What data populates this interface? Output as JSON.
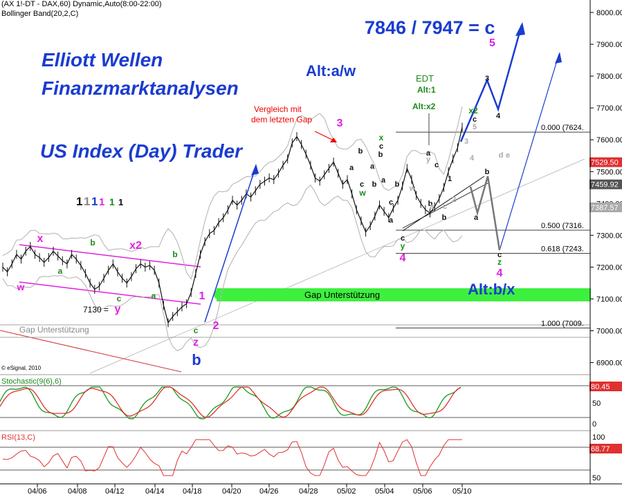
{
  "header": {
    "line1": "(AX 1!-DT - DAX,60) Dynamic,Auto(8:00-22:00)",
    "line2": "Bollinger Band(20,2,C)"
  },
  "titles": {
    "brand1": "Elliott Wellen",
    "brand2": "Finanzmarktanalysen",
    "product": "US Index (Day) Trader",
    "target": "7846 / 7947 = c",
    "target_wave": "5",
    "alt_aw": "Alt:a/w",
    "alt_bx": "Alt:b/x",
    "digits": [
      "1",
      "1",
      "1",
      "1",
      "1",
      "1"
    ]
  },
  "annotations": {
    "vergleich1": "Vergleich mit",
    "vergleich2": "dem letzten Gap",
    "edt1": "EDT",
    "edt2": "Alt:1",
    "edt3": "Alt:x2",
    "gap_green": "Gap Unterstützung",
    "gap_grey": "Gap Unterstützung",
    "level_7130": "7130 =",
    "copyright": "© eSignal, 2010"
  },
  "fib_labels": [
    {
      "ratio": "0.000",
      "value": "(7624.",
      "price": 7624
    },
    {
      "ratio": "0.500",
      "value": "(7316.",
      "price": 7316
    },
    {
      "ratio": "0.618",
      "value": "(7243.",
      "price": 7243
    },
    {
      "ratio": "1.000",
      "value": "(7009.",
      "price": 7009
    }
  ],
  "wave_labels": [
    {
      "t": "w",
      "c": "#e020e0",
      "x": 30,
      "y": 420,
      "s": 14
    },
    {
      "t": "x",
      "c": "#e020e0",
      "x": 58,
      "y": 350,
      "s": 16
    },
    {
      "t": "a",
      "c": "#1a8a1a",
      "x": 87,
      "y": 396,
      "s": 12
    },
    {
      "t": "b",
      "c": "#1a8a1a",
      "x": 134,
      "y": 355,
      "s": 12
    },
    {
      "t": "c",
      "c": "#1a8a1a",
      "x": 172,
      "y": 436,
      "s": 12
    },
    {
      "t": "x2",
      "c": "#e020e0",
      "x": 196,
      "y": 360,
      "s": 16
    },
    {
      "t": "a",
      "c": "#1a8a1a",
      "x": 222,
      "y": 432,
      "s": 12
    },
    {
      "t": "b",
      "c": "#1a8a1a",
      "x": 253,
      "y": 372,
      "s": 12
    },
    {
      "t": "y",
      "c": "#e020e0",
      "x": 170,
      "y": 452,
      "s": 16
    },
    {
      "t": "1",
      "c": "#e020e0",
      "x": 292,
      "y": 433,
      "s": 16
    },
    {
      "t": "2",
      "c": "#e020e0",
      "x": 312,
      "y": 476,
      "s": 16
    },
    {
      "t": "c",
      "c": "#1a8a1a",
      "x": 283,
      "y": 482,
      "s": 12
    },
    {
      "t": "z",
      "c": "#e020e0",
      "x": 283,
      "y": 500,
      "s": 16
    },
    {
      "t": "b",
      "c": "#1a3cd0",
      "x": 284,
      "y": 528,
      "s": 22
    },
    {
      "t": "3",
      "c": "#e020e0",
      "x": 491,
      "y": 183,
      "s": 16
    },
    {
      "t": "a",
      "c": "#111",
      "x": 508,
      "y": 246,
      "s": 11
    },
    {
      "t": "b",
      "c": "#111",
      "x": 521,
      "y": 222,
      "s": 11
    },
    {
      "t": "c",
      "c": "#111",
      "x": 523,
      "y": 270,
      "s": 11
    },
    {
      "t": "w",
      "c": "#1a8a1a",
      "x": 524,
      "y": 283,
      "s": 12
    },
    {
      "t": "x",
      "c": "#1a8a1a",
      "x": 551,
      "y": 203,
      "s": 12
    },
    {
      "t": "c",
      "c": "#111",
      "x": 551,
      "y": 215,
      "s": 11
    },
    {
      "t": "b",
      "c": "#111",
      "x": 550,
      "y": 227,
      "s": 11
    },
    {
      "t": "a",
      "c": "#111",
      "x": 538,
      "y": 244,
      "s": 11
    },
    {
      "t": "b",
      "c": "#111",
      "x": 541,
      "y": 270,
      "s": 11
    },
    {
      "t": "a",
      "c": "#111",
      "x": 554,
      "y": 264,
      "s": 11
    },
    {
      "t": "b",
      "c": "#111",
      "x": 574,
      "y": 270,
      "s": 11
    },
    {
      "t": "c",
      "c": "#111",
      "x": 565,
      "y": 296,
      "s": 11
    },
    {
      "t": "a",
      "c": "#111",
      "x": 565,
      "y": 322,
      "s": 11
    },
    {
      "t": "c",
      "c": "#111",
      "x": 582,
      "y": 348,
      "s": 11
    },
    {
      "t": "y",
      "c": "#1a8a1a",
      "x": 582,
      "y": 360,
      "s": 12
    },
    {
      "t": "4",
      "c": "#e020e0",
      "x": 582,
      "y": 378,
      "s": 16
    },
    {
      "t": "w",
      "c": "#aaaaaa",
      "x": 596,
      "y": 276,
      "s": 11
    },
    {
      "t": "y",
      "c": "#aaaaaa",
      "x": 619,
      "y": 234,
      "s": 11
    },
    {
      "t": "a",
      "c": "#111",
      "x": 619,
      "y": 225,
      "s": 11
    },
    {
      "t": "b",
      "c": "#111",
      "x": 622,
      "y": 298,
      "s": 11
    },
    {
      "t": "c",
      "c": "#111",
      "x": 631,
      "y": 242,
      "s": 11
    },
    {
      "t": "a",
      "c": "#aaaaaa",
      "x": 624,
      "y": 302,
      "s": 11
    },
    {
      "t": "b",
      "c": "#111",
      "x": 642,
      "y": 318,
      "s": 11
    },
    {
      "t": "c",
      "c": "#aaaaaa",
      "x": 643,
      "y": 302,
      "s": 11
    },
    {
      "t": "1",
      "c": "#111",
      "x": 650,
      "y": 262,
      "s": 11
    },
    {
      "t": "2",
      "c": "#aaaaaa",
      "x": 656,
      "y": 292,
      "s": 11
    },
    {
      "t": "3",
      "c": "#aaaaaa",
      "x": 674,
      "y": 208,
      "s": 11
    },
    {
      "t": "4",
      "c": "#aaaaaa",
      "x": 682,
      "y": 232,
      "s": 11
    },
    {
      "t": "5",
      "c": "#aaaaaa",
      "x": 686,
      "y": 187,
      "s": 11
    },
    {
      "t": "x2",
      "c": "#1a8a1a",
      "x": 684,
      "y": 164,
      "s": 12
    },
    {
      "t": "c",
      "c": "#111",
      "x": 686,
      "y": 176,
      "s": 11
    },
    {
      "t": "b",
      "c": "#111",
      "x": 704,
      "y": 252,
      "s": 11
    },
    {
      "t": "a",
      "c": "#111",
      "x": 688,
      "y": 318,
      "s": 11
    },
    {
      "t": "d",
      "c": "#aaaaaa",
      "x": 724,
      "y": 228,
      "s": 11
    },
    {
      "t": "e",
      "c": "#aaaaaa",
      "x": 734,
      "y": 228,
      "s": 11
    },
    {
      "t": "3",
      "c": "#111",
      "x": 704,
      "y": 117,
      "s": 11
    },
    {
      "t": "4",
      "c": "#111",
      "x": 720,
      "y": 171,
      "s": 11
    },
    {
      "t": "c",
      "c": "#111",
      "x": 722,
      "y": 372,
      "s": 11
    },
    {
      "t": "z",
      "c": "#1a8a1a",
      "x": 722,
      "y": 383,
      "s": 12
    },
    {
      "t": "4",
      "c": "#e020e0",
      "x": 722,
      "y": 400,
      "s": 16
    }
  ],
  "indicators": {
    "stochastic": {
      "label": "Stochastic(9(6),6)",
      "value": "80.45",
      "ticks": [
        "50",
        "0"
      ]
    },
    "rsi": {
      "label": "RSI(13,C)",
      "value": "68.77",
      "ticks": [
        "100",
        "50"
      ]
    }
  },
  "chart_data": {
    "type": "line",
    "instrument": "(AX 1!-DT - DAX,60)",
    "ylim": [
      6850,
      8050
    ],
    "y_ticks": [
      6900,
      7000,
      7100,
      7200,
      7300,
      7400,
      7500,
      7600,
      7700,
      7800,
      7900,
      8000
    ],
    "y_tick_labels": [
      "6900.00",
      "7000.00",
      "7100.00",
      "7200.00",
      "7300.00",
      "7400.00",
      "7500.00",
      "7600.00",
      "7700.00",
      "7800.00",
      "7900.00",
      "8000.00"
    ],
    "x_tick_labels": [
      "04/06",
      "04/08",
      "04/12",
      "04/14",
      "04/18",
      "04/20",
      "04/26",
      "04/28",
      "05/02",
      "05/04",
      "05/06",
      "05/10"
    ],
    "price_badges": [
      {
        "value": "7529.50",
        "price": 7529.5,
        "color": "#e03030"
      },
      {
        "value": "7459.92",
        "price": 7459.92,
        "color": "#555555"
      },
      {
        "value": "7387.57",
        "price": 7387.57,
        "color": "#aaaaaa"
      }
    ],
    "series": [
      {
        "values": [
          7200,
          7185,
          7210,
          7240,
          7225,
          7250,
          7265,
          7240,
          7230,
          7215,
          7230,
          7250,
          7235,
          7220,
          7210,
          7240,
          7225,
          7205,
          7180,
          7150,
          7130,
          7140,
          7165,
          7190,
          7210,
          7185,
          7165,
          7150,
          7170,
          7195,
          7210,
          7200,
          7205,
          7190,
          7150,
          7080,
          7025,
          7045,
          7060,
          7075,
          7085,
          7120,
          7180,
          7240,
          7280,
          7305,
          7315,
          7340,
          7355,
          7380,
          7410,
          7395,
          7410,
          7430,
          7420,
          7440,
          7460,
          7470,
          7480,
          7475,
          7495,
          7520,
          7540,
          7590,
          7610,
          7585,
          7555,
          7520,
          7480,
          7470,
          7490,
          7510,
          7530,
          7495,
          7460,
          7475,
          7430,
          7380,
          7345,
          7310,
          7330,
          7360,
          7395,
          7375,
          7355,
          7385,
          7410,
          7455,
          7510,
          7475,
          7425,
          7400,
          7380,
          7370,
          7390,
          7415,
          7450,
          7500,
          7540,
          7575,
          7640
        ]
      }
    ]
  }
}
